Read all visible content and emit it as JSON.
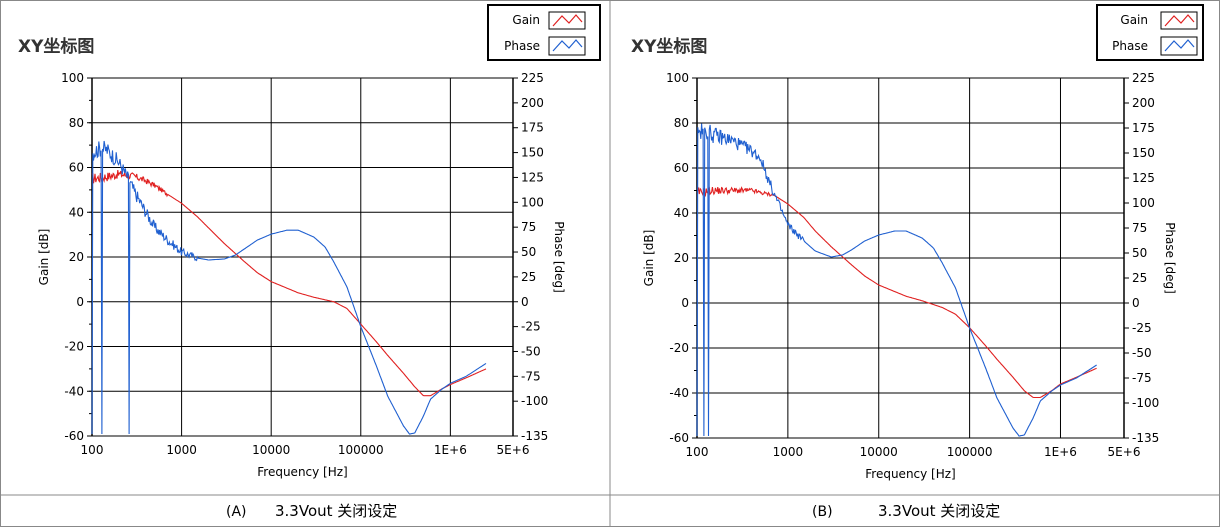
{
  "panels": [
    {
      "id": "A",
      "plot_title": "XY坐标图",
      "caption_label": "(A)",
      "caption_text": "3.3Vout 关闭设定",
      "legend": [
        {
          "name": "Gain",
          "color": "#e02020"
        },
        {
          "name": "Phase",
          "color": "#2060d0"
        }
      ]
    },
    {
      "id": "B",
      "plot_title": "XY坐标图",
      "caption_label": "(B)",
      "caption_text": "3.3Vout 关闭设定",
      "legend": [
        {
          "name": "Gain",
          "color": "#e02020"
        },
        {
          "name": "Phase",
          "color": "#2060d0"
        }
      ]
    }
  ],
  "chart_data": [
    {
      "type": "line",
      "title": "XY坐标图",
      "xlabel": "Frequency [Hz]",
      "ylabel": "Gain [dB]",
      "y2label": "Phase [deg]",
      "xscale": "log",
      "xlim": [
        100,
        5000000
      ],
      "ylim": [
        -60,
        100
      ],
      "y2lim": [
        -135,
        225
      ],
      "xticks": [
        100,
        1000,
        10000,
        100000,
        1000000,
        5000000
      ],
      "xtick_labels": [
        "100",
        "1000",
        "10000",
        "100000",
        "1E+6",
        "5E+6"
      ],
      "yticks": [
        -60,
        -40,
        -20,
        0,
        20,
        40,
        60,
        80,
        100
      ],
      "y2ticks": [
        -135,
        -100,
        -75,
        -50,
        -25,
        0,
        25,
        50,
        75,
        100,
        125,
        150,
        175,
        200,
        225
      ],
      "grid": true,
      "legend_position": "top-right",
      "series": [
        {
          "name": "Gain",
          "axis": "left",
          "color": "#e02020",
          "x": [
            100,
            150,
            200,
            300,
            400,
            500,
            700,
            1000,
            1500,
            2000,
            3000,
            5000,
            7000,
            10000,
            20000,
            30000,
            50000,
            70000,
            100000,
            150000,
            200000,
            300000,
            400000,
            500000,
            600000,
            800000,
            1000000,
            1500000,
            2500000
          ],
          "y": [
            55,
            56,
            57,
            56,
            54,
            52,
            48,
            44,
            38,
            33,
            26,
            18,
            13,
            9,
            4,
            2,
            0,
            -3,
            -10,
            -18,
            -24,
            -32,
            -38,
            -42,
            -42,
            -39,
            -37,
            -34,
            -30
          ],
          "noise_below_hz": 700,
          "noise_amplitude": 2.5
        },
        {
          "name": "Phase",
          "axis": "right",
          "color": "#2060d0",
          "x": [
            100,
            130,
            150,
            200,
            250,
            300,
            400,
            500,
            700,
            1000,
            1500,
            2000,
            3000,
            4000,
            5000,
            7000,
            10000,
            15000,
            20000,
            30000,
            40000,
            50000,
            70000,
            100000,
            150000,
            200000,
            300000,
            350000,
            400000,
            500000,
            600000,
            800000,
            1000000,
            1500000,
            2500000
          ],
          "y": [
            150,
            155,
            152,
            140,
            125,
            110,
            90,
            75,
            62,
            50,
            44,
            42,
            43,
            47,
            53,
            62,
            68,
            72,
            72,
            65,
            55,
            40,
            15,
            -25,
            -65,
            -95,
            -125,
            -133,
            -132,
            -115,
            -98,
            -88,
            -82,
            -75,
            -62
          ],
          "noise_below_hz": 1500,
          "noise_amplitude": 9,
          "spikes_hz": [
            100,
            130,
            260
          ],
          "spike_to": -133
        }
      ]
    },
    {
      "type": "line",
      "title": "XY坐标图",
      "xlabel": "Frequency [Hz]",
      "ylabel": "Gain [dB]",
      "y2label": "Phase [deg]",
      "xscale": "log",
      "xlim": [
        100,
        5000000
      ],
      "ylim": [
        -60,
        100
      ],
      "y2lim": [
        -135,
        225
      ],
      "xticks": [
        100,
        1000,
        10000,
        100000,
        1000000,
        5000000
      ],
      "xtick_labels": [
        "100",
        "1000",
        "10000",
        "100000",
        "1E+6",
        "5E+6"
      ],
      "yticks": [
        -60,
        -40,
        -20,
        0,
        20,
        40,
        60,
        80,
        100
      ],
      "y2ticks": [
        -135,
        -100,
        -75,
        -50,
        -25,
        0,
        25,
        50,
        75,
        100,
        125,
        150,
        175,
        200,
        225
      ],
      "grid": true,
      "legend_position": "top-right",
      "series": [
        {
          "name": "Gain",
          "axis": "left",
          "color": "#e02020",
          "x": [
            100,
            150,
            200,
            300,
            400,
            500,
            700,
            1000,
            1500,
            2000,
            3000,
            5000,
            7000,
            10000,
            20000,
            30000,
            50000,
            70000,
            100000,
            150000,
            200000,
            300000,
            400000,
            500000,
            600000,
            800000,
            1000000,
            1500000,
            2500000
          ],
          "y": [
            49,
            50,
            50,
            50,
            50,
            49,
            48,
            44,
            38,
            32,
            25,
            17,
            12,
            8,
            3,
            1,
            -2,
            -5,
            -11,
            -19,
            -25,
            -33,
            -39,
            -42,
            -42,
            -39,
            -36,
            -33,
            -29
          ],
          "noise_below_hz": 700,
          "noise_amplitude": 2
        },
        {
          "name": "Phase",
          "axis": "right",
          "color": "#2060d0",
          "x": [
            100,
            130,
            150,
            200,
            250,
            300,
            400,
            500,
            600,
            700,
            800,
            1000,
            1500,
            2000,
            3000,
            4000,
            5000,
            7000,
            10000,
            15000,
            20000,
            30000,
            40000,
            50000,
            70000,
            100000,
            150000,
            200000,
            300000,
            350000,
            400000,
            500000,
            600000,
            800000,
            1000000,
            1500000,
            2500000
          ],
          "y": [
            170,
            172,
            168,
            165,
            162,
            158,
            152,
            145,
            125,
            110,
            98,
            78,
            62,
            52,
            46,
            48,
            53,
            62,
            68,
            72,
            72,
            65,
            55,
            40,
            15,
            -25,
            -65,
            -95,
            -125,
            -133,
            -132,
            -115,
            -98,
            -88,
            -82,
            -75,
            -62
          ],
          "noise_below_hz": 1500,
          "noise_amplitude": 9,
          "spikes_hz": [
            100,
            120,
            135
          ],
          "spike_to": -133
        }
      ]
    }
  ]
}
